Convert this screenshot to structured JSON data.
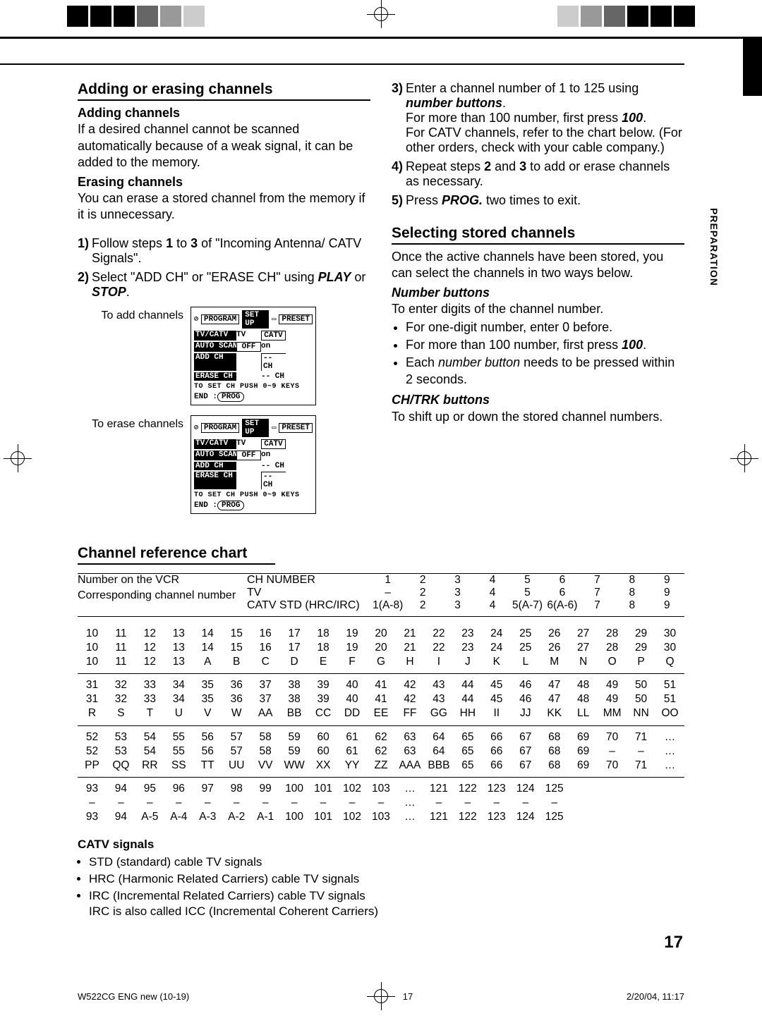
{
  "section1": {
    "title": "Adding or erasing channels",
    "addTitle": "Adding channels",
    "addText": "If a desired channel cannot be scanned automatically because of a weak signal, it can be added to the memory.",
    "eraseTitle": "Erasing channels",
    "eraseText": "You can erase a stored channel from the memory if it is unnecessary.",
    "step1": "Follow steps 1 to 3 of \"Incoming Antenna/CATV Signals\".",
    "step2a": "Select \"ADD CH\" or \"ERASE CH\" using ",
    "step2b": "PLAY",
    "step2c": " or ",
    "step2d": "STOP",
    "step2e": ".",
    "addLabel": "To add channels",
    "eraseLabel": "To erase channels",
    "screen": {
      "prog": "PROGRAM",
      "setup": "SET  UP",
      "preset": "PRESET",
      "r1a": "TV/CATV",
      "r1b": "TV",
      "r1c": "CATV",
      "r2a": "AUTO SCAN",
      "r2b": "OFF",
      "r2c": "on",
      "r3a": "ADD CH",
      "r3c": "-- CH",
      "r4a": "ERASE CH",
      "r4c": "-- CH",
      "toset": "TO SET CH PUSH 0~9 KEYS",
      "end": "END :",
      "progbtn": "PROG"
    }
  },
  "section2": {
    "step3a": "Enter a channel number of 1 to 125 using ",
    "step3b": "number buttons",
    "step3c": ".",
    "step3d": "For more than 100 number, first press ",
    "step3e": "100",
    "step3f": ".",
    "step3g": "For CATV channels, refer to the chart below. (For other orders, check with your cable company.)",
    "step4a": "Repeat steps ",
    "step4b": "2",
    "step4c": " and ",
    "step4d": "3",
    "step4e": " to add or erase channels as necessary.",
    "step5a": "Press ",
    "step5b": "PROG.",
    "step5c": " two times to exit.",
    "title": "Selecting stored channels",
    "intro": "Once the active channels have been stored, you can select the channels in two ways below.",
    "nbTitle": "Number buttons",
    "nbText": "To enter digits of the channel number.",
    "nb1": "For one-digit number, enter 0 before.",
    "nb2a": "For more than 100 number, first press ",
    "nb2b": "100",
    "nb2c": ".",
    "nb3a": "Each ",
    "nb3b": "number button",
    "nb3c": " needs to be pressed within 2 seconds.",
    "chTitle": "CH/TRK buttons",
    "chText": "To shift up or down the stored channel numbers."
  },
  "vtab": "PREPARATION",
  "chart": {
    "title": "Channel reference chart",
    "h1": "Number on the VCR",
    "h2": "Corresponding channel number",
    "h3": "CH NUMBER",
    "h4": "TV",
    "h5": "CATV STD (HRC/IRC)",
    "hr1": [
      "1",
      "2",
      "3",
      "4",
      "5",
      "6",
      "7",
      "8",
      "9"
    ],
    "hr2": [
      "–",
      "2",
      "3",
      "4",
      "5",
      "6",
      "7",
      "8",
      "9"
    ],
    "hr3": [
      "1(A-8)",
      "2",
      "3",
      "4",
      "5(A-7)",
      "6(A-6)",
      "7",
      "8",
      "9"
    ],
    "blocks": [
      [
        [
          "10",
          "11",
          "12",
          "13",
          "14",
          "15",
          "16",
          "17",
          "18",
          "19",
          "20",
          "21",
          "22",
          "23",
          "24",
          "25",
          "26",
          "27",
          "28",
          "29",
          "30"
        ],
        [
          "10",
          "11",
          "12",
          "13",
          "14",
          "15",
          "16",
          "17",
          "18",
          "19",
          "20",
          "21",
          "22",
          "23",
          "24",
          "25",
          "26",
          "27",
          "28",
          "29",
          "30"
        ],
        [
          "10",
          "11",
          "12",
          "13",
          "A",
          "B",
          "C",
          "D",
          "E",
          "F",
          "G",
          "H",
          "I",
          "J",
          "K",
          "L",
          "M",
          "N",
          "O",
          "P",
          "Q"
        ]
      ],
      [
        [
          "31",
          "32",
          "33",
          "34",
          "35",
          "36",
          "37",
          "38",
          "39",
          "40",
          "41",
          "42",
          "43",
          "44",
          "45",
          "46",
          "47",
          "48",
          "49",
          "50",
          "51"
        ],
        [
          "31",
          "32",
          "33",
          "34",
          "35",
          "36",
          "37",
          "38",
          "39",
          "40",
          "41",
          "42",
          "43",
          "44",
          "45",
          "46",
          "47",
          "48",
          "49",
          "50",
          "51"
        ],
        [
          "R",
          "S",
          "T",
          "U",
          "V",
          "W",
          "AA",
          "BB",
          "CC",
          "DD",
          "EE",
          "FF",
          "GG",
          "HH",
          "II",
          "JJ",
          "KK",
          "LL",
          "MM",
          "NN",
          "OO"
        ]
      ],
      [
        [
          "52",
          "53",
          "54",
          "55",
          "56",
          "57",
          "58",
          "59",
          "60",
          "61",
          "62",
          "63",
          "64",
          "65",
          "66",
          "67",
          "68",
          "69",
          "70",
          "71",
          "…"
        ],
        [
          "52",
          "53",
          "54",
          "55",
          "56",
          "57",
          "58",
          "59",
          "60",
          "61",
          "62",
          "63",
          "64",
          "65",
          "66",
          "67",
          "68",
          "69",
          "–",
          "–",
          "…"
        ],
        [
          "PP",
          "QQ",
          "RR",
          "SS",
          "TT",
          "UU",
          "VV",
          "WW",
          "XX",
          "YY",
          "ZZ",
          "AAA",
          "BBB",
          "65",
          "66",
          "67",
          "68",
          "69",
          "70",
          "71",
          "…"
        ]
      ],
      [
        [
          "93",
          "94",
          "95",
          "96",
          "97",
          "98",
          "99",
          "100",
          "101",
          "102",
          "103",
          "…",
          "121",
          "122",
          "123",
          "124",
          "125",
          "",
          "",
          "",
          ""
        ],
        [
          "–",
          "–",
          "–",
          "–",
          "–",
          "–",
          "–",
          "–",
          "–",
          "–",
          "–",
          "…",
          "–",
          "–",
          "–",
          "–",
          "–",
          "",
          "",
          "",
          ""
        ],
        [
          "93",
          "94",
          "A-5",
          "A-4",
          "A-3",
          "A-2",
          "A-1",
          "100",
          "101",
          "102",
          "103",
          "…",
          "121",
          "122",
          "123",
          "124",
          "125",
          "",
          "",
          "",
          ""
        ]
      ]
    ],
    "catvTitle": "CATV signals",
    "c1": "STD (standard) cable TV signals",
    "c2": "HRC (Harmonic Related Carriers) cable TV signals",
    "c3": "IRC (Incremental Related Carriers) cable TV signals",
    "c4": "IRC is also called ICC (Incremental Coherent Carriers)"
  },
  "pageNum": "17",
  "footer": {
    "left": "W522CG ENG new (10-19)",
    "mid": "17",
    "right": "2/20/04, 11:17"
  }
}
